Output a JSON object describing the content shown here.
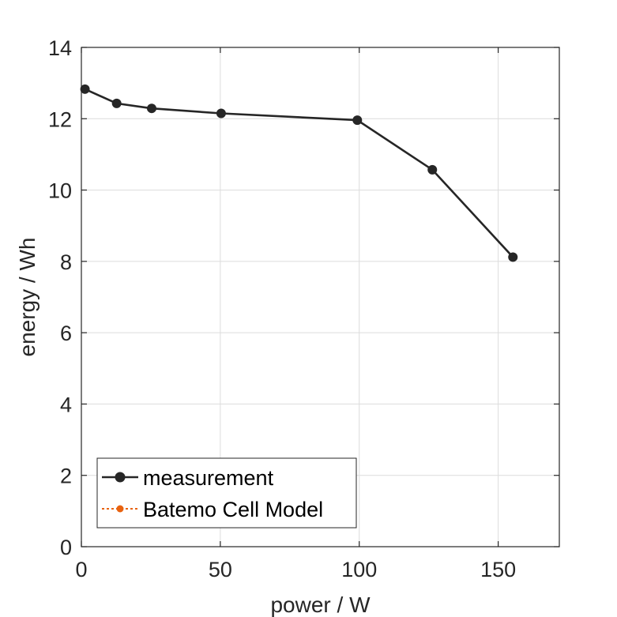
{
  "chart_data": {
    "type": "line",
    "title": "",
    "xlabel": "power / W",
    "ylabel": "energy / Wh",
    "xlim": [
      0,
      172
    ],
    "ylim": [
      0,
      14
    ],
    "xticks": [
      0,
      50,
      100,
      150
    ],
    "yticks": [
      0,
      2,
      4,
      6,
      8,
      10,
      12,
      14
    ],
    "grid": true,
    "legend_position": "bottom-left",
    "series": [
      {
        "name": "measurement",
        "color": "#262626",
        "line_style": "solid",
        "marker": "circle",
        "x": [
          1.3,
          12.7,
          25.3,
          50.3,
          99.3,
          126.3,
          155.3
        ],
        "y": [
          12.83,
          12.43,
          12.29,
          12.15,
          11.96,
          10.57,
          8.12
        ]
      },
      {
        "name": "Batemo Cell Model",
        "color": "#e8620f",
        "line_style": "dotted",
        "marker": "circle",
        "x": [],
        "y": []
      }
    ]
  }
}
